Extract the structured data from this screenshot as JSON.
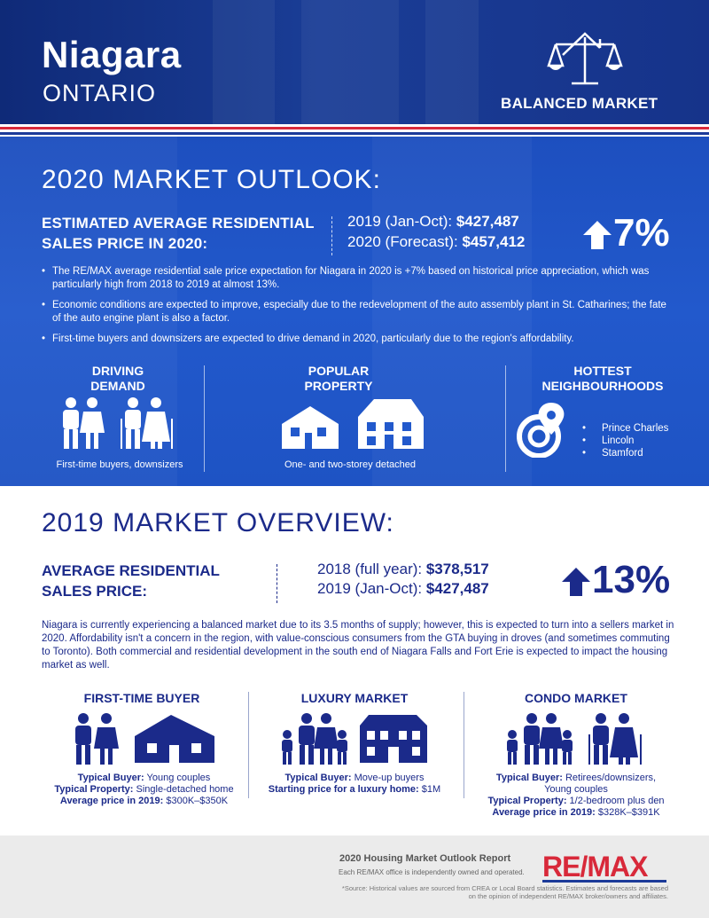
{
  "header": {
    "city": "Niagara",
    "province": "ONTARIO",
    "market_type": "BALANCED MARKET"
  },
  "outlook": {
    "title": "2020 MARKET OUTLOOK:",
    "label_line1": "ESTIMATED AVERAGE RESIDENTIAL",
    "label_line2": "SALES PRICE IN 2020:",
    "price1_label": "2019 (Jan-Oct): ",
    "price1_value": "$427,487",
    "price2_label": "2020 (Forecast): ",
    "price2_value": "$457,412",
    "change": "7%",
    "bullets": [
      "The RE/MAX average residential sale price expectation for Niagara in 2020 is +7% based on historical price appreciation, which was particularly high from 2018 to 2019 at almost 13%.",
      "Economic conditions are expected to improve, especially due to the redevelopment of the auto assembly plant in St. Catharines; the fate of the auto engine plant is also a factor.",
      "First-time buyers and downsizers are expected to drive demand in 2020, particularly due to the region's affordability."
    ],
    "driving_demand": {
      "head1": "DRIVING",
      "head2": "DEMAND",
      "caption": "First-time buyers, downsizers"
    },
    "popular_property": {
      "head1": "POPULAR",
      "head2": "PROPERTY",
      "caption": "One- and two-storey detached"
    },
    "hottest": {
      "head1": "HOTTEST",
      "head2": "NEIGHBOURHOODS",
      "items": [
        "Prince Charles",
        "Lincoln",
        "Stamford"
      ]
    }
  },
  "overview": {
    "title": "2019 MARKET OVERVIEW:",
    "label_line1": "AVERAGE RESIDENTIAL",
    "label_line2": "SALES PRICE:",
    "price1_label": "2018 (full year): ",
    "price1_value": "$378,517",
    "price2_label": "2019 (Jan-Oct): ",
    "price2_value": "$427,487",
    "change": "13%",
    "paragraph": "Niagara is currently experiencing a balanced market due to its 3.5 months of supply; however, this is expected to turn into a sellers market in 2020. Affordability isn't a concern in the region, with value-conscious consumers from the GTA buying in droves (and sometimes commuting to Toronto). Both commercial and residential development in the south end of Niagara Falls and Fort Erie is expected to impact the housing market as well.",
    "segments": [
      {
        "title": "FIRST-TIME BUYER",
        "l1_label": "Typical Buyer:",
        "l1_value": " Young couples",
        "l2_label": "Typical Property:",
        "l2_value": " Single-detached home",
        "l3_label": "Average price in 2019:",
        "l3_value": " $300K–$350K"
      },
      {
        "title": "LUXURY MARKET",
        "l1_label": "Typical Buyer:",
        "l1_value": " Move-up buyers",
        "l2_label": "Starting price for a luxury home:",
        "l2_value": " $1M"
      },
      {
        "title": "CONDO MARKET",
        "l1_label": "Typical Buyer:",
        "l1_value": " Retirees/downsizers,",
        "l1b": "Young couples",
        "l2_label": "Typical Property:",
        "l2_value": " 1/2-bedroom plus den",
        "l3_label": "Average price in 2019:",
        "l3_value": " $328K–$391K"
      }
    ]
  },
  "footer": {
    "title": "2020 Housing Market Outlook Report",
    "sub": "Each RE/MAX office is independently owned and operated.",
    "note": "*Source: Historical values are sourced from CREA or Local Board statistics. Estimates and forecasts are based on the opinion of independent RE/MAX broker/owners and affiliates.",
    "logo_a": "RE/",
    "logo_b": "MAX"
  },
  "colors": {
    "navy": "#1b2a8a",
    "blue": "#2259cc",
    "red": "#d8293a"
  }
}
